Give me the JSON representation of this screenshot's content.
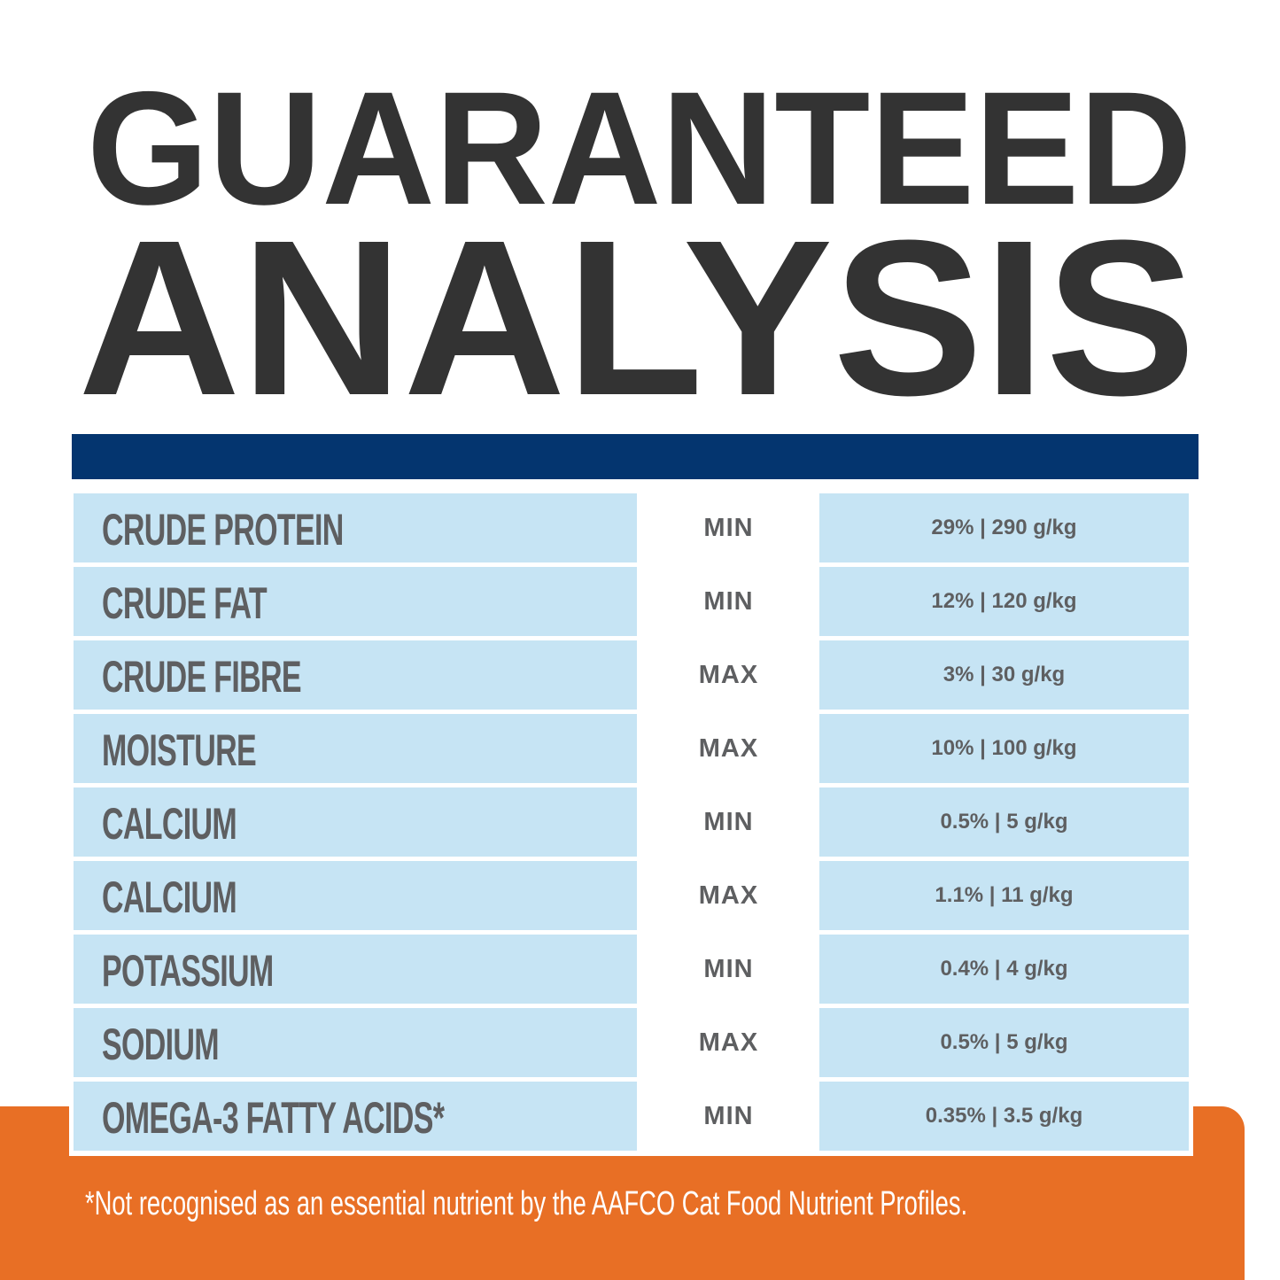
{
  "header": {
    "line1": "GUARANTEED",
    "line2": "ANALYSIS"
  },
  "colors": {
    "title": "#333333",
    "bar": "#04356f",
    "cell": "#c6e4f4",
    "text": "#5e5f61",
    "footer": "#e86f25"
  },
  "rows": [
    {
      "nutrient": "CRUDE PROTEIN",
      "type": "MIN",
      "value": "29% | 290 g/kg"
    },
    {
      "nutrient": "CRUDE FAT",
      "type": "MIN",
      "value": "12% | 120 g/kg"
    },
    {
      "nutrient": "CRUDE FIBRE",
      "type": "MAX",
      "value": "3% | 30 g/kg"
    },
    {
      "nutrient": "MOISTURE",
      "type": "MAX",
      "value": "10% | 100 g/kg"
    },
    {
      "nutrient": "CALCIUM",
      "type": "MIN",
      "value": "0.5% | 5 g/kg"
    },
    {
      "nutrient": "CALCIUM",
      "type": "MAX",
      "value": "1.1% | 11 g/kg"
    },
    {
      "nutrient": "POTASSIUM",
      "type": "MIN",
      "value": "0.4% | 4 g/kg"
    },
    {
      "nutrient": "SODIUM",
      "type": "MAX",
      "value": "0.5% | 5 g/kg"
    },
    {
      "nutrient": "OMEGA-3 FATTY ACIDS*",
      "type": "MIN",
      "value": "0.35% | 3.5 g/kg"
    }
  ],
  "footnote": "*Not recognised as an essential nutrient by the AAFCO Cat Food Nutrient Profiles."
}
